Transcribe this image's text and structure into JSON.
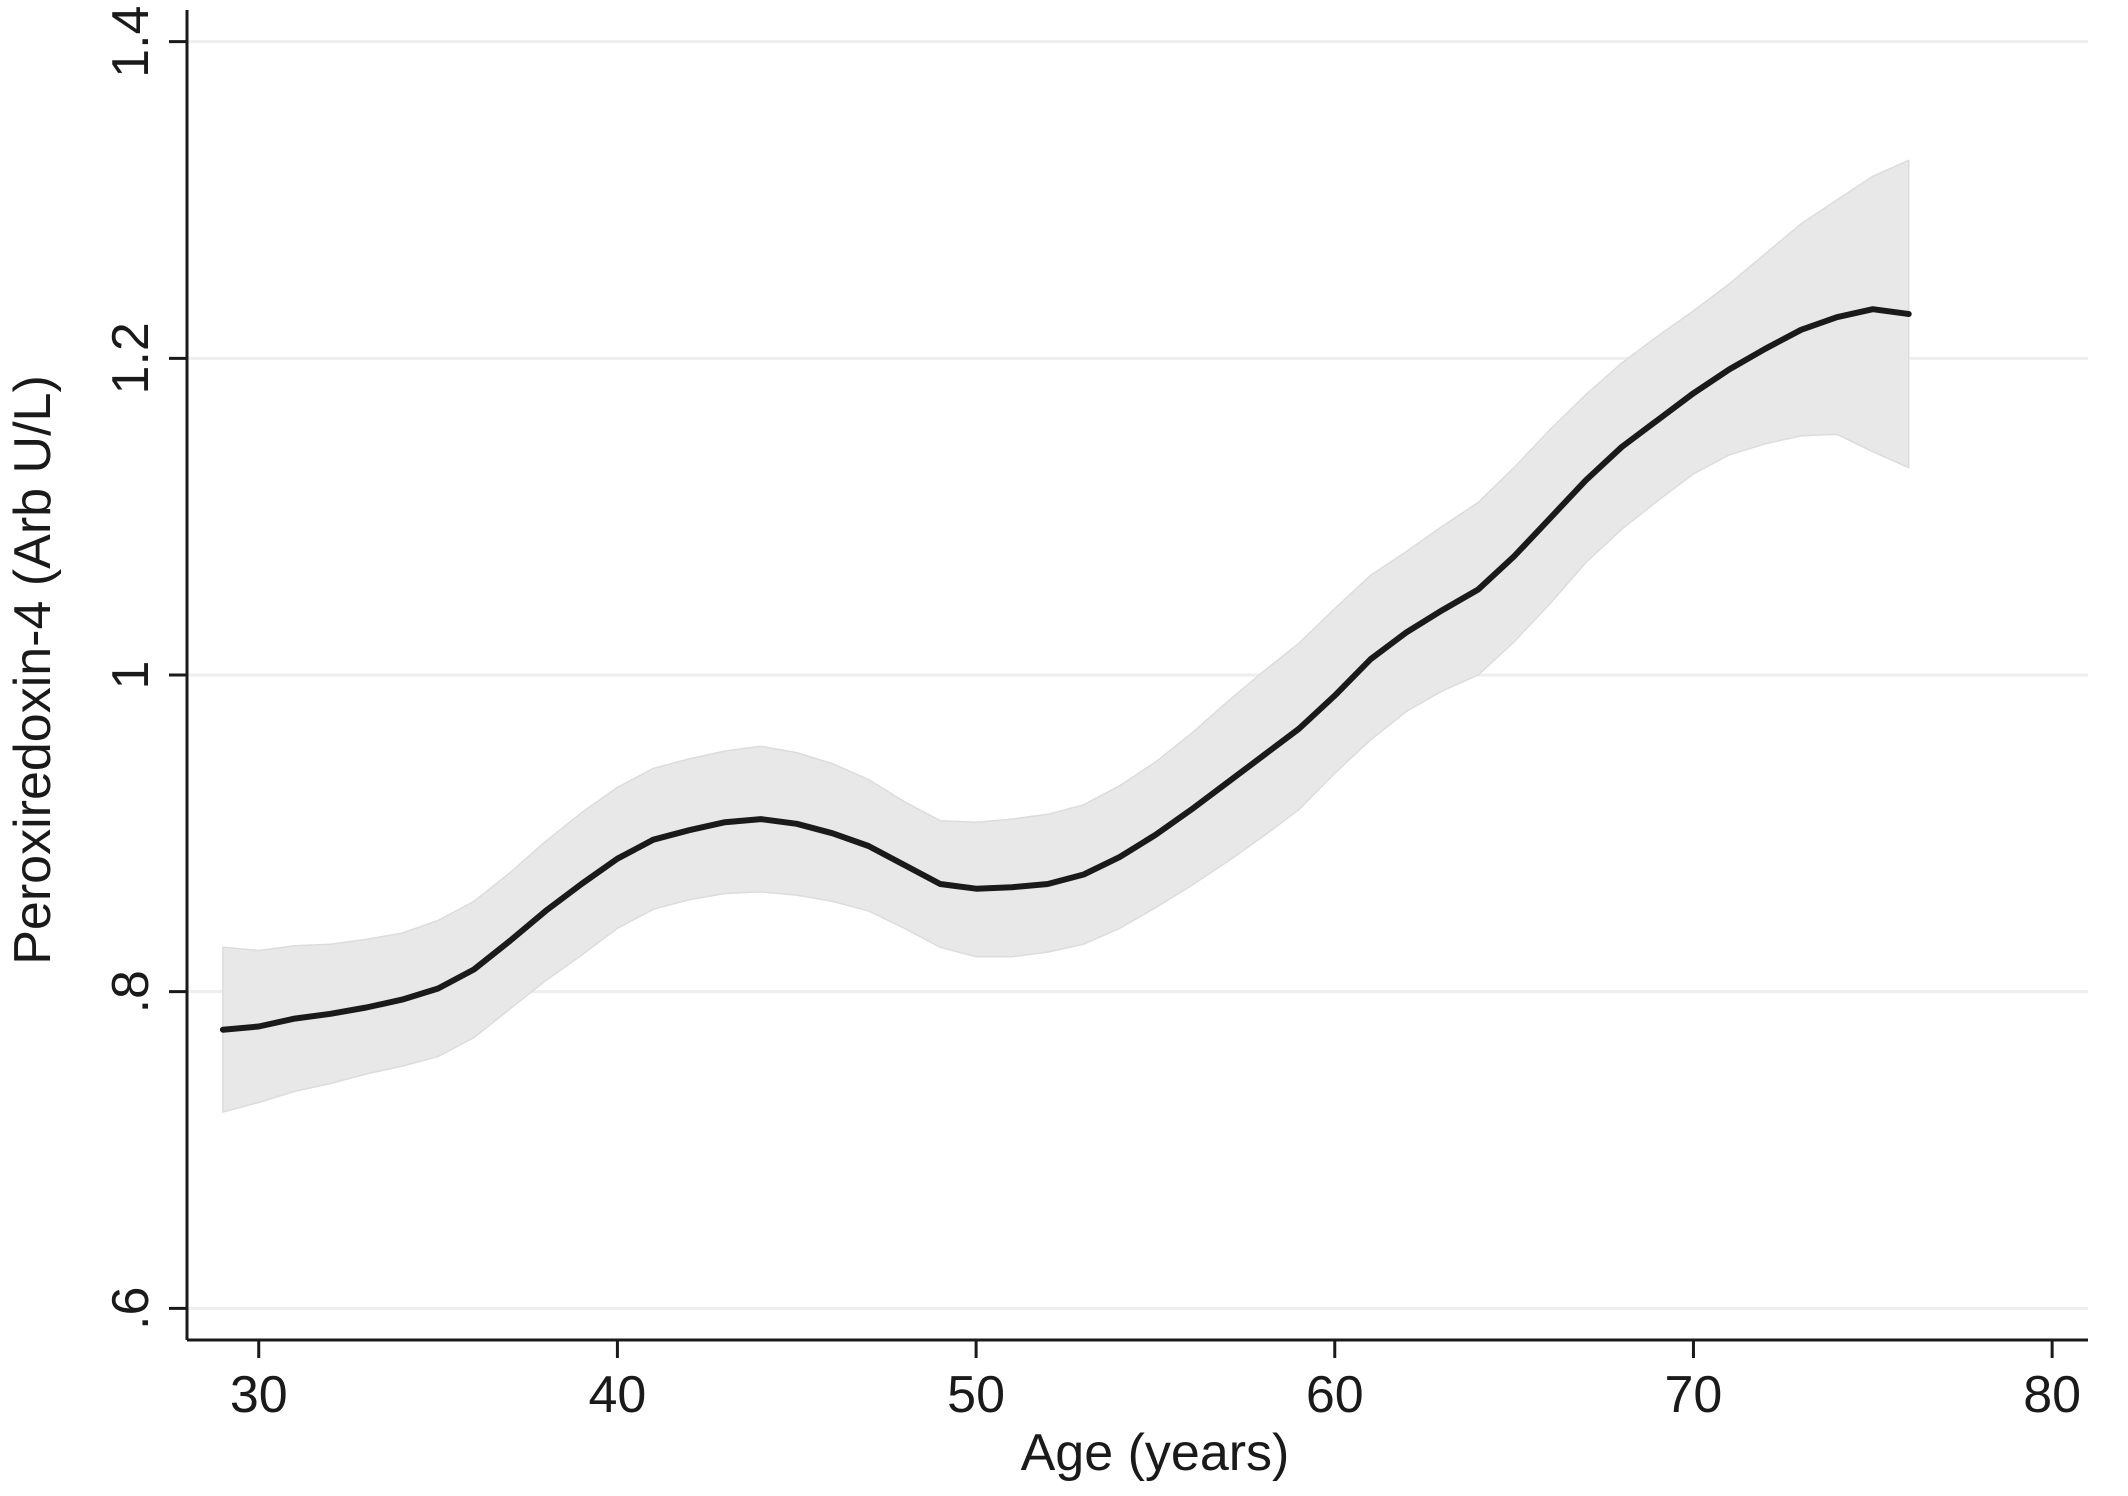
{
  "chart_data": {
    "type": "line",
    "xlabel": "Age (years)",
    "ylabel": "Peroxiredoxin-4 (Arb U/L)",
    "xlim": [
      28,
      81
    ],
    "ylim": [
      0.58,
      1.42
    ],
    "x_ticks": [
      {
        "value": 30,
        "label": "30"
      },
      {
        "value": 40,
        "label": "40"
      },
      {
        "value": 50,
        "label": "50"
      },
      {
        "value": 60,
        "label": "60"
      },
      {
        "value": 70,
        "label": "70"
      },
      {
        "value": 80,
        "label": "80"
      }
    ],
    "y_ticks": [
      {
        "value": 0.6,
        "label": ".6"
      },
      {
        "value": 0.8,
        "label": ".8"
      },
      {
        "value": 1.0,
        "label": "1"
      },
      {
        "value": 1.2,
        "label": "1.2"
      },
      {
        "value": 1.4,
        "label": "1.4"
      }
    ],
    "grid": "horizontal",
    "colors": {
      "line": "#1a1a1a",
      "band": "#e8e8e8",
      "grid": "#eeeeee",
      "axis": "#1a1a1a"
    },
    "series": [
      {
        "x": [
          29,
          30,
          31,
          32,
          33,
          34,
          35,
          36,
          37,
          38,
          39,
          40,
          41,
          42,
          43,
          44,
          45,
          46,
          47,
          48,
          49,
          50,
          51,
          52,
          53,
          54,
          55,
          56,
          57,
          58,
          59,
          60,
          61,
          62,
          63,
          64,
          65,
          66,
          67,
          68,
          69,
          70,
          71,
          72,
          73,
          74,
          75,
          76
        ],
        "y": [
          0.776,
          0.778,
          0.783,
          0.786,
          0.79,
          0.795,
          0.802,
          0.814,
          0.832,
          0.851,
          0.868,
          0.884,
          0.896,
          0.902,
          0.907,
          0.909,
          0.906,
          0.9,
          0.892,
          0.88,
          0.868,
          0.865,
          0.866,
          0.868,
          0.874,
          0.885,
          0.899,
          0.915,
          0.932,
          0.949,
          0.966,
          0.987,
          1.01,
          1.027,
          1.041,
          1.054,
          1.075,
          1.099,
          1.123,
          1.144,
          1.161,
          1.178,
          1.193,
          1.206,
          1.218,
          1.226,
          1.231,
          1.228
        ],
        "ci_lower": [
          0.724,
          0.73,
          0.737,
          0.742,
          0.748,
          0.753,
          0.759,
          0.771,
          0.789,
          0.807,
          0.823,
          0.84,
          0.852,
          0.858,
          0.862,
          0.863,
          0.861,
          0.857,
          0.851,
          0.84,
          0.828,
          0.822,
          0.822,
          0.825,
          0.83,
          0.84,
          0.853,
          0.867,
          0.882,
          0.898,
          0.915,
          0.938,
          0.959,
          0.977,
          0.99,
          1.0,
          1.021,
          1.045,
          1.071,
          1.092,
          1.11,
          1.127,
          1.139,
          1.146,
          1.151,
          1.152,
          1.141,
          1.131
        ],
        "ci_upper": [
          0.828,
          0.826,
          0.829,
          0.83,
          0.833,
          0.837,
          0.845,
          0.857,
          0.875,
          0.895,
          0.913,
          0.929,
          0.941,
          0.947,
          0.952,
          0.955,
          0.951,
          0.944,
          0.934,
          0.92,
          0.908,
          0.907,
          0.909,
          0.912,
          0.918,
          0.93,
          0.945,
          0.963,
          0.983,
          1.002,
          1.02,
          1.042,
          1.063,
          1.078,
          1.094,
          1.109,
          1.131,
          1.155,
          1.177,
          1.197,
          1.214,
          1.23,
          1.247,
          1.266,
          1.285,
          1.3,
          1.315,
          1.325
        ]
      }
    ]
  }
}
